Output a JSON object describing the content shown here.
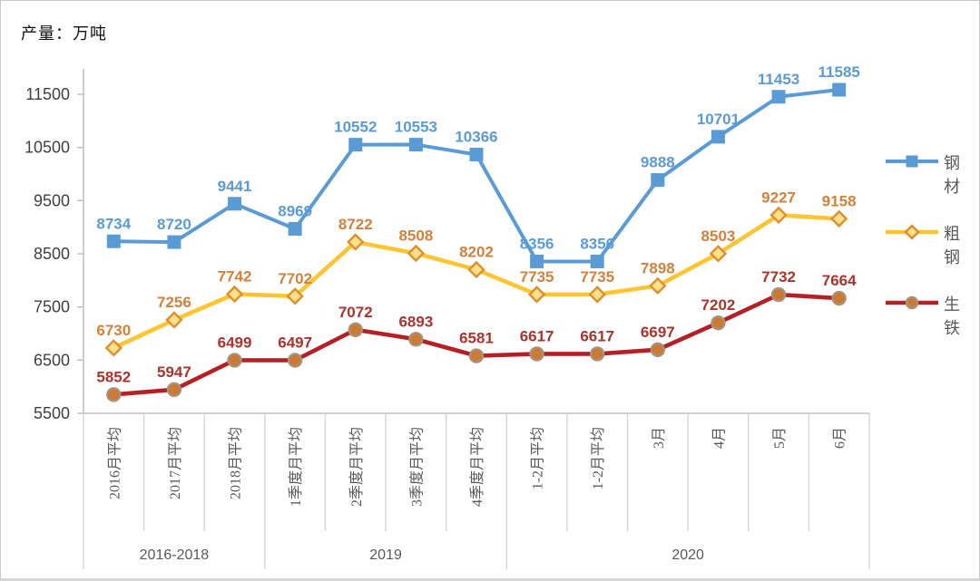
{
  "chart_data": {
    "type": "line",
    "title": "产量：万吨",
    "xlabel": "",
    "ylabel": "产量：万吨",
    "grid": false,
    "legend_position": "right",
    "y_axis": {
      "min": 5500,
      "max": 11500,
      "step": 1000,
      "ticks": [
        5500,
        6500,
        7500,
        8500,
        9500,
        10500,
        11500
      ]
    },
    "categories": [
      "2016月平均",
      "2017月平均",
      "2018月平均",
      "1季度月平均",
      "2季度月平均",
      "3季度月平均",
      "4季度月平均",
      "1-2月平均",
      "1-2月平均",
      "3月",
      "4月",
      "5月",
      "6月"
    ],
    "groups": [
      {
        "label": "2016-2018",
        "span": 3
      },
      {
        "label": "2019",
        "span": 4
      },
      {
        "label": "2020",
        "span": 6
      }
    ],
    "series": [
      {
        "name": "钢材",
        "marker": "square",
        "color": "#5B9BD5",
        "label_color": "#5B9BD5",
        "marker_fill": "#5B9BD5",
        "marker_stroke": "#5B9BD5",
        "values": [
          8734,
          8720,
          9441,
          8969,
          10552,
          10553,
          10366,
          8356,
          8356,
          9888,
          10701,
          11453,
          11585
        ]
      },
      {
        "name": "粗钢",
        "marker": "diamond",
        "color": "#FFC432",
        "label_color": "#D0813C",
        "marker_fill": "#FFE08A",
        "marker_stroke": "#DD8F2D",
        "values": [
          6730,
          7256,
          7742,
          7702,
          8722,
          8508,
          8202,
          7735,
          7735,
          7898,
          8503,
          9227,
          9158
        ]
      },
      {
        "name": "生铁",
        "marker": "circle",
        "color": "#B42025",
        "label_color": "#A8342B",
        "marker_fill": "#CC7A33",
        "marker_stroke": "#A6927B",
        "values": [
          5852,
          5947,
          6499,
          6497,
          7072,
          6893,
          6581,
          6617,
          6617,
          6697,
          7202,
          7732,
          7664
        ]
      }
    ],
    "colors": {
      "axis": "#BFBFBF",
      "separator": "#D4D4D4",
      "y_tick_label": "#404040",
      "x_tick_label": "#595959",
      "group_label": "#595959",
      "legend_text": "#595959",
      "title": "#111111"
    }
  }
}
